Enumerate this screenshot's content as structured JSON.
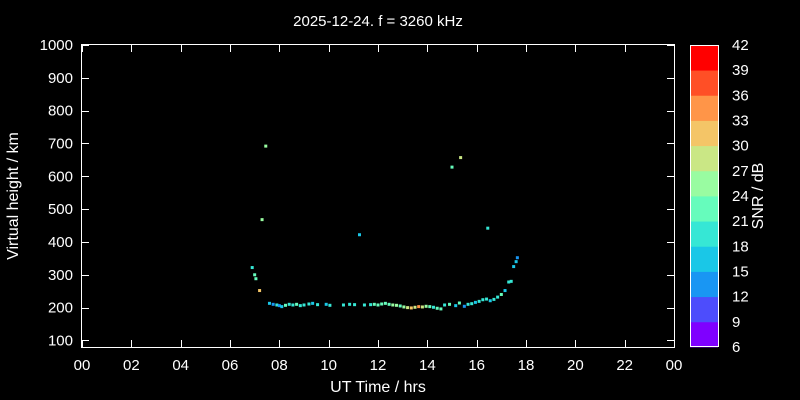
{
  "chart_data": {
    "type": "scatter",
    "title": "2025-12-24. f = 3260 kHz",
    "xlabel": "UT Time / hrs",
    "ylabel": "Virtual height / km",
    "xlim": [
      0,
      24
    ],
    "ylim": [
      80,
      1000
    ],
    "xticks": [
      "00",
      "02",
      "04",
      "06",
      "08",
      "10",
      "12",
      "14",
      "16",
      "18",
      "20",
      "22",
      "00"
    ],
    "yticks": [
      100,
      200,
      300,
      400,
      500,
      600,
      700,
      800,
      900,
      1000
    ],
    "grid": false,
    "colorbar": {
      "label": "SNR / dB",
      "range": [
        6,
        42
      ],
      "ticks": [
        6,
        9,
        12,
        15,
        18,
        21,
        24,
        27,
        30,
        33,
        36,
        39,
        42
      ],
      "colors": [
        "#7f00ff",
        "#4d4dfc",
        "#1996f3",
        "#1ac7e7",
        "#36e7d5",
        "#66fcbc",
        "#99fca1",
        "#cae785",
        "#f4c567",
        "#ff9548",
        "#ff4f26",
        "#ff0000"
      ]
    },
    "points": [
      [
        6.9,
        322,
        20
      ],
      [
        7.0,
        300,
        21
      ],
      [
        7.05,
        288,
        22
      ],
      [
        7.2,
        252,
        32
      ],
      [
        7.3,
        468,
        24
      ],
      [
        7.45,
        692,
        24
      ],
      [
        7.6,
        213,
        16
      ],
      [
        7.75,
        210,
        14
      ],
      [
        7.9,
        208,
        18
      ],
      [
        8.0,
        206,
        14
      ],
      [
        8.1,
        203,
        16
      ],
      [
        8.25,
        207,
        22
      ],
      [
        8.4,
        210,
        20
      ],
      [
        8.55,
        208,
        18
      ],
      [
        8.7,
        210,
        21
      ],
      [
        8.85,
        206,
        19
      ],
      [
        9.0,
        208,
        20
      ],
      [
        9.2,
        211,
        18
      ],
      [
        9.35,
        213,
        16
      ],
      [
        9.55,
        209,
        19
      ],
      [
        9.9,
        210,
        16
      ],
      [
        10.05,
        207,
        18
      ],
      [
        10.6,
        208,
        18
      ],
      [
        10.85,
        210,
        20
      ],
      [
        11.05,
        209,
        18
      ],
      [
        11.25,
        422,
        15
      ],
      [
        11.45,
        208,
        20
      ],
      [
        11.7,
        209,
        18
      ],
      [
        11.85,
        210,
        21
      ],
      [
        12.0,
        208,
        22
      ],
      [
        12.15,
        211,
        22
      ],
      [
        12.3,
        213,
        21
      ],
      [
        12.45,
        210,
        22
      ],
      [
        12.6,
        208,
        24
      ],
      [
        12.75,
        207,
        24
      ],
      [
        12.9,
        205,
        22
      ],
      [
        13.05,
        202,
        25
      ],
      [
        13.2,
        200,
        27
      ],
      [
        13.35,
        199,
        30
      ],
      [
        13.5,
        201,
        28
      ],
      [
        13.65,
        203,
        33
      ],
      [
        13.8,
        202,
        28
      ],
      [
        13.95,
        204,
        24
      ],
      [
        14.1,
        203,
        22
      ],
      [
        14.25,
        201,
        20
      ],
      [
        14.4,
        198,
        21
      ],
      [
        14.55,
        196,
        22
      ],
      [
        14.7,
        208,
        20
      ],
      [
        14.9,
        210,
        22
      ],
      [
        15.0,
        628,
        22
      ],
      [
        15.15,
        206,
        16
      ],
      [
        15.3,
        214,
        22
      ],
      [
        15.35,
        657,
        27
      ],
      [
        15.5,
        204,
        14
      ],
      [
        15.65,
        210,
        20
      ],
      [
        15.8,
        212,
        18
      ],
      [
        15.95,
        216,
        16
      ],
      [
        16.1,
        219,
        18
      ],
      [
        16.25,
        224,
        18
      ],
      [
        16.4,
        226,
        20
      ],
      [
        16.45,
        442,
        18
      ],
      [
        16.55,
        221,
        17
      ],
      [
        16.7,
        225,
        19
      ],
      [
        16.85,
        232,
        20
      ],
      [
        17.0,
        240,
        22
      ],
      [
        17.15,
        252,
        16
      ],
      [
        17.3,
        278,
        18
      ],
      [
        17.4,
        280,
        19
      ],
      [
        17.5,
        325,
        16
      ],
      [
        17.6,
        340,
        15
      ],
      [
        17.65,
        352,
        14
      ]
    ]
  }
}
